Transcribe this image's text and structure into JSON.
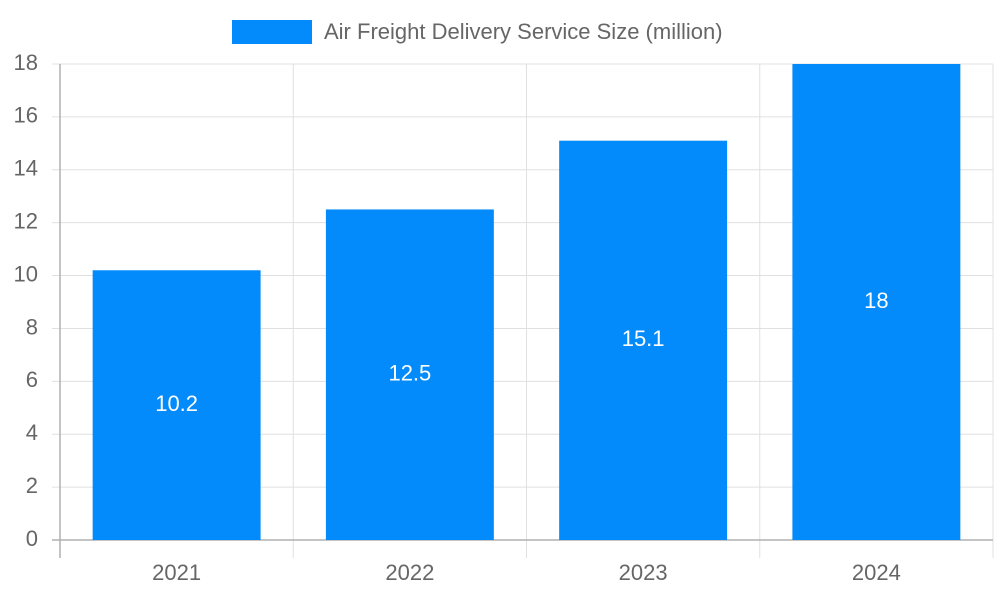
{
  "chart_data": {
    "type": "bar",
    "categories": [
      "2021",
      "2022",
      "2023",
      "2024"
    ],
    "series": [
      {
        "name": "Air Freight Delivery Service Size (million)",
        "color": "#038bfb",
        "values": [
          10.2,
          12.5,
          15.1,
          18
        ]
      }
    ],
    "ylim": [
      0,
      18
    ],
    "yticks": [
      0,
      2,
      4,
      6,
      8,
      10,
      12,
      14,
      16,
      18
    ],
    "grid": true,
    "legend": "top",
    "data_labels": true
  }
}
